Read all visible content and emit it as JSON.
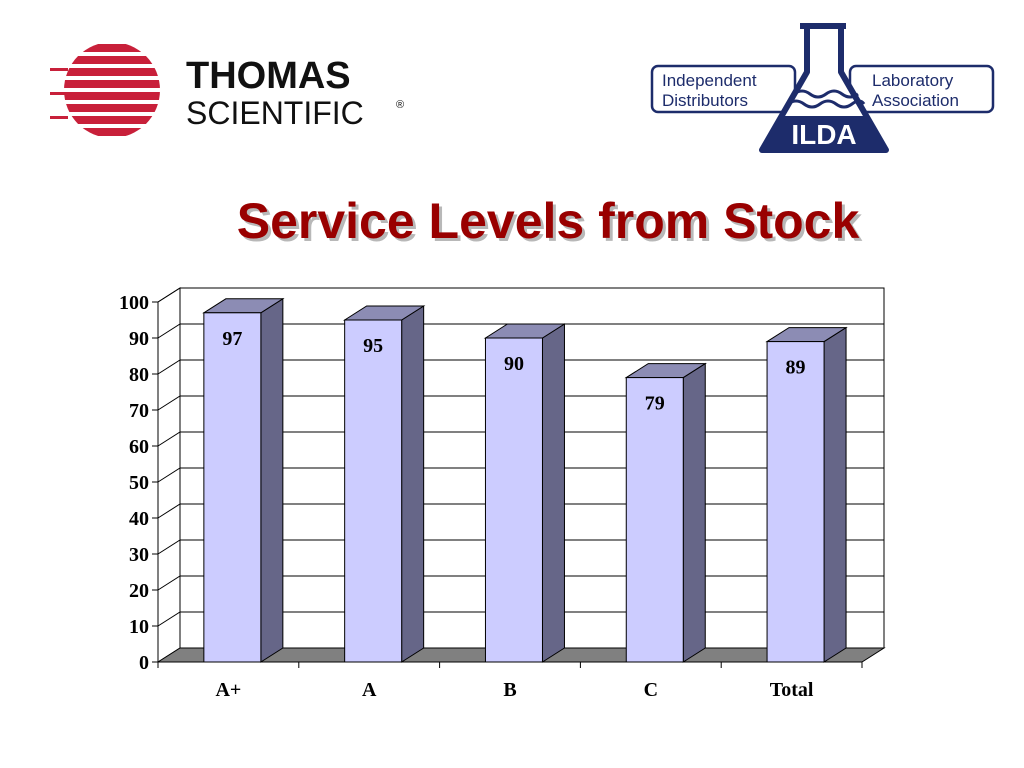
{
  "logos": {
    "left": {
      "line1": "THOMAS",
      "line2": "SCIENTIFIC",
      "mark": "®",
      "icon": "thomas-stripes-logo"
    },
    "right": {
      "left_text": [
        "Independent",
        "Distributors"
      ],
      "right_text": [
        "Laboratory",
        "Association"
      ],
      "acronym": "ILDA",
      "icon": "flask-icon"
    }
  },
  "colors": {
    "title": "#990000",
    "bar_front": "#ccccff",
    "bar_side": "#666688",
    "floor": "#808080",
    "brand_red": "#c8203a",
    "brand_navy": "#1d2c6b"
  },
  "chart_data": {
    "type": "bar",
    "title": "Service Levels from Stock",
    "categories": [
      "A+",
      "A",
      "B",
      "C",
      "Total"
    ],
    "values": [
      97,
      95,
      90,
      79,
      89
    ],
    "ylim": [
      0,
      100
    ],
    "yticks": [
      0,
      10,
      20,
      30,
      40,
      50,
      60,
      70,
      80,
      90,
      100
    ],
    "grid": true,
    "style": "3d-column",
    "legend": "none"
  }
}
